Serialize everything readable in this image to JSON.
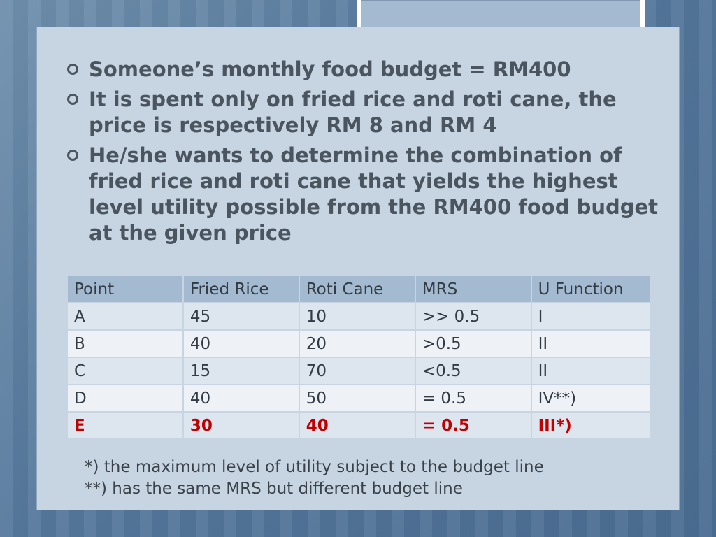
{
  "bullets": [
    "Someone’s monthly food budget = RM400",
    "It is spent only on fried rice and roti cane, the price is respectively RM 8 and RM 4",
    "He/she wants to determine the combination of fried rice and roti cane that yields the highest level utility possible from the RM400 food budget at the given price"
  ],
  "table": {
    "headers": [
      "Point",
      "Fried Rice",
      "Roti Cane",
      "MRS",
      "U Function"
    ],
    "rows": [
      [
        "A",
        "45",
        "10",
        ">> 0.5",
        "I"
      ],
      [
        "B",
        "40",
        "20",
        ">0.5",
        "II"
      ],
      [
        "C",
        "15",
        "70",
        "<0.5",
        "II"
      ],
      [
        "D",
        "40",
        "50",
        "= 0.5",
        "IV**)"
      ],
      [
        "E",
        "30",
        "40",
        "= 0.5",
        "III*)"
      ]
    ],
    "highlight_color": "#c00000"
  },
  "notes": [
    "*) the maximum level of utility subject to the budget line",
    "**) has the same MRS but different budget line"
  ]
}
